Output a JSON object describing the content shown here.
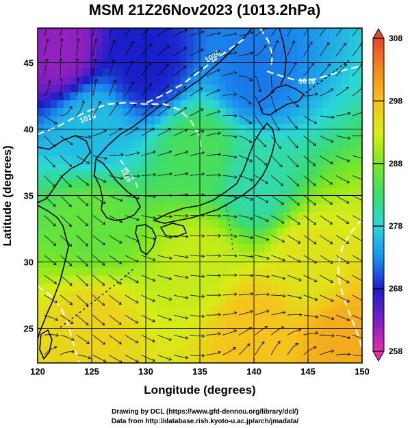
{
  "chart_data": {
    "type": "heatmap",
    "title": "MSM 21Z26Nov2023 (1013.2hPa)",
    "xlabel": "Longitude (degrees)",
    "ylabel": "Latitude  (degrees)",
    "xlim": [
      120,
      150
    ],
    "ylim": [
      22.4,
      47.6
    ],
    "xticks": [
      120,
      125,
      130,
      135,
      140,
      145,
      150
    ],
    "yticks": [
      25,
      30,
      35,
      40,
      45
    ],
    "colorbar": {
      "min": 258,
      "max": 308,
      "ticks": [
        258,
        268,
        278,
        288,
        298,
        308
      ],
      "colors": [
        "#e62ea6",
        "#7b1fc4",
        "#1a1ec8",
        "#1a90f0",
        "#2ad8d8",
        "#3ddc6a",
        "#7ee820",
        "#d8ec18",
        "#f6c21c",
        "#f28a1e",
        "#e8462a"
      ]
    },
    "contour_labels": [
      "1020",
      "1016",
      "1016",
      "1016"
    ],
    "grid": true,
    "field_samples": [
      {
        "lon": 122,
        "lat": 46,
        "value": 262
      },
      {
        "lon": 130,
        "lat": 45,
        "value": 268
      },
      {
        "lon": 140,
        "lat": 44,
        "value": 272
      },
      {
        "lon": 125,
        "lat": 40,
        "value": 276
      },
      {
        "lon": 135,
        "lat": 38,
        "value": 284
      },
      {
        "lon": 140,
        "lat": 36,
        "value": 280
      },
      {
        "lon": 125,
        "lat": 33,
        "value": 286
      },
      {
        "lon": 135,
        "lat": 30,
        "value": 292
      },
      {
        "lon": 145,
        "lat": 30,
        "value": 294
      },
      {
        "lon": 125,
        "lat": 25,
        "value": 296
      },
      {
        "lon": 140,
        "lat": 25,
        "value": 298
      },
      {
        "lon": 148,
        "lat": 24,
        "value": 300
      }
    ]
  },
  "credits": {
    "line1": "Drawing by DCL (https://www.gfd-dennou.org/library/dcl/)",
    "line2": "Data from http://database.rish.kyoto-u.ac.jp/arch/jmadata/"
  }
}
